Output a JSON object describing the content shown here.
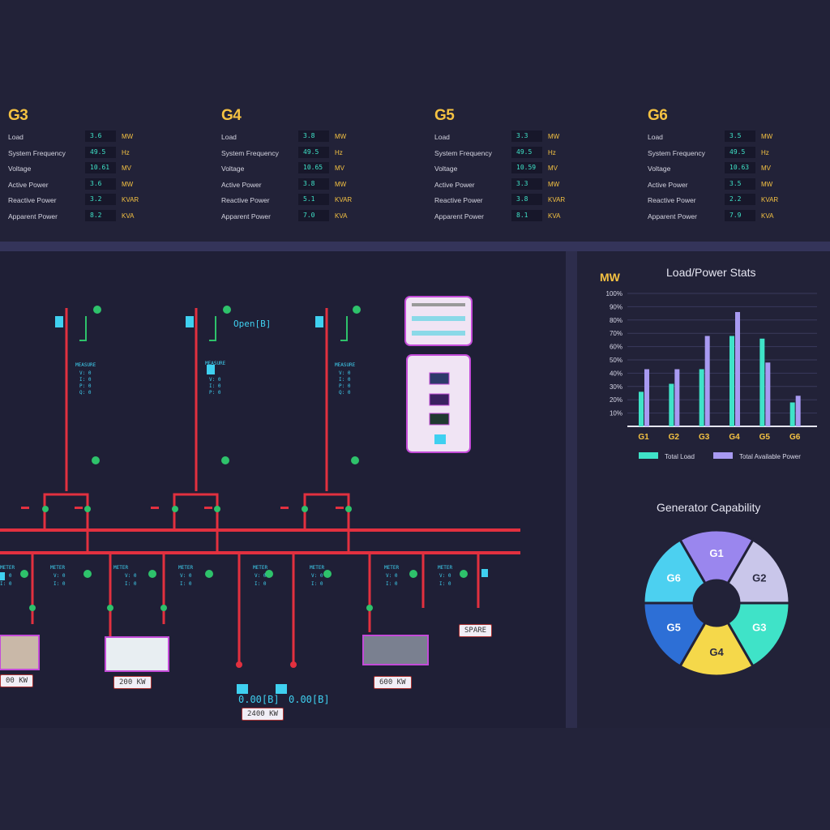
{
  "generators": [
    {
      "name": "G3",
      "rows": [
        {
          "label": "Load",
          "value": "3.6",
          "unit": "MW"
        },
        {
          "label": "System Frequency",
          "value": "49.5",
          "unit": "Hz"
        },
        {
          "label": "Voltage",
          "value": "10.61",
          "unit": "MV"
        },
        {
          "label": "Active Power",
          "value": "3.6",
          "unit": "MW"
        },
        {
          "label": "Reactive Power",
          "value": "3.2",
          "unit": "KVAR"
        },
        {
          "label": "Apparent Power",
          "value": "8.2",
          "unit": "KVA"
        }
      ]
    },
    {
      "name": "G4",
      "rows": [
        {
          "label": "Load",
          "value": "3.8",
          "unit": "MW"
        },
        {
          "label": "System Frequency",
          "value": "49.5",
          "unit": "Hz"
        },
        {
          "label": "Voltage",
          "value": "10.65",
          "unit": "MV"
        },
        {
          "label": "Active Power",
          "value": "3.8",
          "unit": "MW"
        },
        {
          "label": "Reactive Power",
          "value": "5.1",
          "unit": "KVAR"
        },
        {
          "label": "Apparent Power",
          "value": "7.0",
          "unit": "KVA"
        }
      ]
    },
    {
      "name": "G5",
      "rows": [
        {
          "label": "Load",
          "value": "3.3",
          "unit": "MW"
        },
        {
          "label": "System Frequency",
          "value": "49.5",
          "unit": "Hz"
        },
        {
          "label": "Voltage",
          "value": "10.59",
          "unit": "MV"
        },
        {
          "label": "Active Power",
          "value": "3.3",
          "unit": "MW"
        },
        {
          "label": "Reactive Power",
          "value": "3.8",
          "unit": "KVAR"
        },
        {
          "label": "Apparent Power",
          "value": "8.1",
          "unit": "KVA"
        }
      ]
    },
    {
      "name": "G6",
      "rows": [
        {
          "label": "Load",
          "value": "3.5",
          "unit": "MW"
        },
        {
          "label": "System Frequency",
          "value": "49.5",
          "unit": "Hz"
        },
        {
          "label": "Voltage",
          "value": "10.63",
          "unit": "MV"
        },
        {
          "label": "Active Power",
          "value": "3.5",
          "unit": "MW"
        },
        {
          "label": "Reactive Power",
          "value": "2.2",
          "unit": "KVAR"
        },
        {
          "label": "Apparent Power",
          "value": "7.9",
          "unit": "KVA"
        }
      ]
    }
  ],
  "diagram": {
    "feeder_readouts": [
      "0.00[B]",
      "0.00[B]"
    ],
    "tags": {
      "left": "00 KW",
      "center_left": "200 KW",
      "bottom_center": "2400 KW",
      "center_right": "600 KW",
      "spare": "SPARE"
    },
    "breaker_label": "Open[B]"
  },
  "load_chart_title": "Load/Power Stats",
  "capability_title": "Generator Capability",
  "chart_data": [
    {
      "type": "bar",
      "title": "Load/Power Stats",
      "ylabel": "MW",
      "categories": [
        "G1",
        "G2",
        "G3",
        "G4",
        "G5",
        "G6"
      ],
      "yticks": [
        "10%",
        "20%",
        "30%",
        "40%",
        "50%",
        "60%",
        "70%",
        "80%",
        "90%",
        "100%"
      ],
      "ylim": [
        0,
        100
      ],
      "series": [
        {
          "name": "Total Load",
          "color": "#3fe3c8",
          "values": [
            26,
            32,
            43,
            68,
            66,
            18
          ]
        },
        {
          "name": "Total Available Power",
          "color": "#a89af2",
          "values": [
            43,
            43,
            68,
            86,
            48,
            23
          ]
        }
      ],
      "legend": "bottom"
    },
    {
      "type": "pie",
      "title": "Generator Capability",
      "labels": [
        "G1",
        "G2",
        "G3",
        "G4",
        "G5",
        "G6"
      ],
      "values": [
        1,
        1,
        1,
        1,
        1,
        1
      ],
      "colors": [
        "#9a86ee",
        "#c9c6ea",
        "#3fe3c8",
        "#f5d84a",
        "#2d6fd6",
        "#4cd0f0"
      ]
    }
  ],
  "colors": {
    "background": "#222238",
    "accent": "#f5c242",
    "value": "#3fe3c8",
    "bus": "#e2303f"
  }
}
